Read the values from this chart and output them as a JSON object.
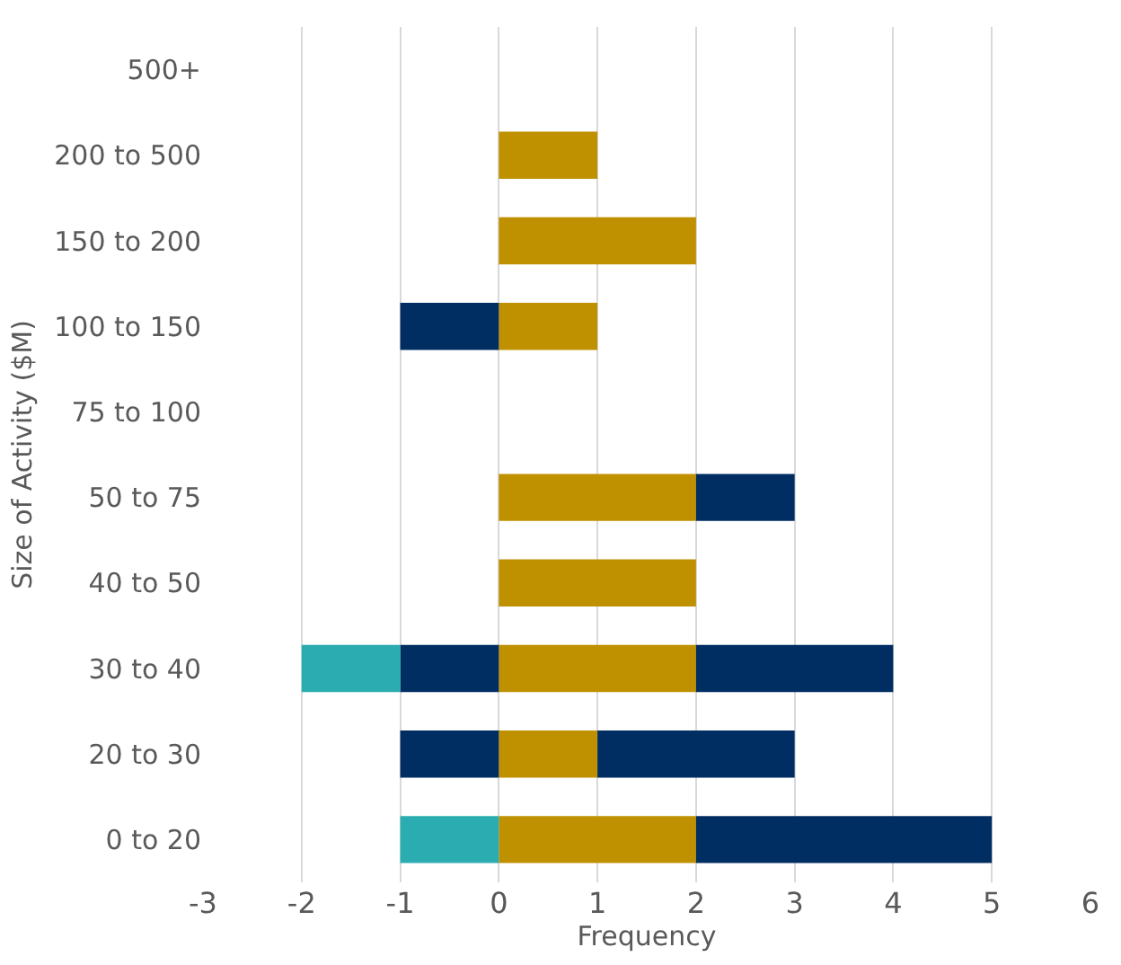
{
  "chart_data": {
    "type": "bar",
    "orientation": "horizontal",
    "stacked": true,
    "categories": [
      "500+",
      "200 to 500",
      "150 to 200",
      "100 to 150",
      "75 to 100",
      "50 to 75",
      "40 to 50",
      "30 to 40",
      "20 to 30",
      "0 to 20"
    ],
    "series": [
      {
        "color": "#bf9000",
        "values": [
          null,
          1,
          2,
          1,
          null,
          2,
          2,
          2,
          1,
          2
        ]
      },
      {
        "color": "#002d62",
        "values": [
          null,
          null,
          null,
          null,
          null,
          1,
          null,
          2,
          2,
          3
        ]
      },
      {
        "color": "#002d62",
        "values": [
          null,
          null,
          null,
          -1,
          null,
          null,
          null,
          -1,
          -1,
          null
        ]
      },
      {
        "color": "#2aacb0",
        "values": [
          null,
          null,
          null,
          null,
          null,
          null,
          null,
          -1,
          null,
          -1
        ]
      }
    ],
    "xlabel": "Frequency",
    "ylabel": "Size of Activity ($M)",
    "xlim": [
      -3,
      6
    ],
    "xticks": [
      -3,
      -2,
      -1,
      0,
      1,
      2,
      3,
      4,
      5,
      6
    ],
    "grid": "x"
  }
}
